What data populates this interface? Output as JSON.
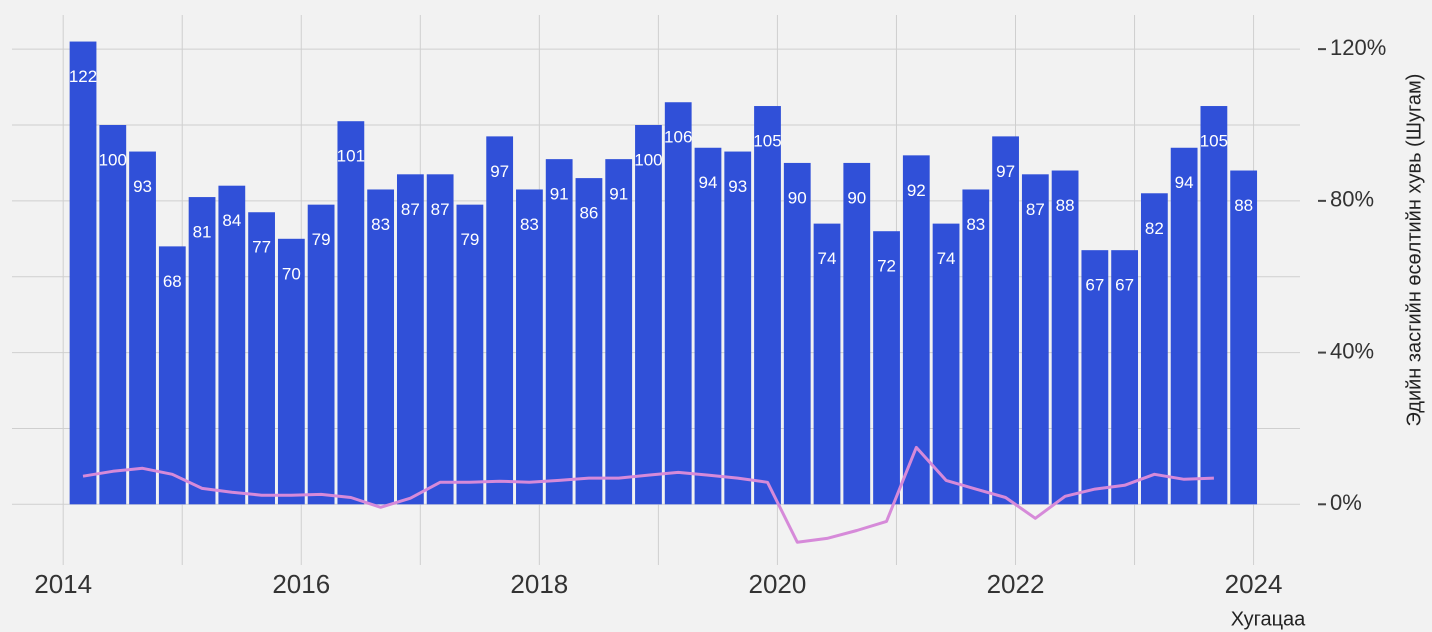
{
  "chart_data": {
    "type": "bar",
    "x_label": "Хугацаа",
    "y2_label": "Эдийн засгийн өсөлтийн хувь (Шугам)",
    "x": [
      "2014-03",
      "2014-06",
      "2014-09",
      "2014-12",
      "2015-03",
      "2015-06",
      "2015-09",
      "2015-12",
      "2016-03",
      "2016-06",
      "2016-09",
      "2016-12",
      "2017-03",
      "2017-06",
      "2017-09",
      "2017-12",
      "2018-03",
      "2018-06",
      "2018-09",
      "2018-12",
      "2019-03",
      "2019-06",
      "2019-09",
      "2019-12",
      "2020-03",
      "2020-06",
      "2020-09",
      "2020-12",
      "2021-03",
      "2021-06",
      "2021-09",
      "2021-12",
      "2022-03",
      "2022-06",
      "2022-09",
      "2022-12",
      "2023-03",
      "2023-06",
      "2023-09",
      "2023-12"
    ],
    "series": [
      {
        "type": "bar",
        "color": "#3050d8",
        "axis": "y",
        "values": [
          122,
          100,
          93,
          68,
          81,
          84,
          77,
          70,
          79,
          101,
          83,
          87,
          87,
          79,
          97,
          83,
          91,
          86,
          91,
          100,
          106,
          94,
          93,
          105,
          90,
          74,
          90,
          72,
          92,
          74,
          83,
          97,
          87,
          88,
          67,
          67,
          82,
          94,
          105,
          88
        ]
      },
      {
        "type": "line",
        "color": "#d68ad9",
        "axis": "y2",
        "values": [
          7.4,
          8.7,
          9.5,
          7.9,
          4.2,
          3.2,
          2.4,
          2.4,
          2.6,
          1.8,
          -0.8,
          1.6,
          5.8,
          5.8,
          6.1,
          5.8,
          6.3,
          6.9,
          6.9,
          7.7,
          8.4,
          7.7,
          6.9,
          5.8,
          -10.0,
          -9.0,
          -6.9,
          -4.5,
          15.0,
          6.3,
          4.0,
          1.8,
          -3.7,
          2.1,
          4.0,
          5.0,
          7.9,
          6.6,
          6.9,
          null
        ]
      }
    ],
    "xlim": [
      2013.57,
      2024.39
    ],
    "xticks": [
      2014,
      2016,
      2018,
      2020,
      2022,
      2024
    ],
    "x_minor_ticks": [
      2014,
      2015,
      2016,
      2017,
      2018,
      2019,
      2020,
      2021,
      2022,
      2023,
      2024
    ],
    "ylim": [
      -16,
      129
    ],
    "yticks": [
      0,
      20,
      40,
      60,
      80,
      100,
      120
    ],
    "y2lim": [
      -16,
      129
    ],
    "y2ticks": [
      {
        "value": 0,
        "label": "0%"
      },
      {
        "value": 40,
        "label": "40%"
      },
      {
        "value": 80,
        "label": "80%"
      },
      {
        "value": 120,
        "label": "120%"
      }
    ],
    "grid": true
  }
}
